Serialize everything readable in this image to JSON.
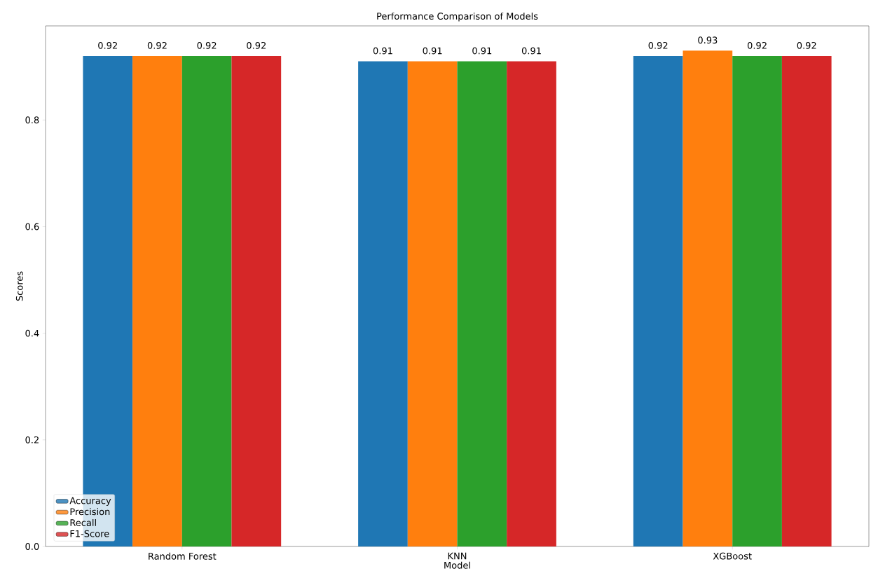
{
  "chart_data": {
    "type": "bar",
    "title": "Performance Comparison of Models",
    "xlabel": "Model",
    "ylabel": "Scores",
    "categories": [
      "Random Forest",
      "KNN",
      "XGBoost"
    ],
    "series": [
      {
        "name": "Accuracy",
        "color": "#1f77b4",
        "values": [
          0.92,
          0.91,
          0.92
        ]
      },
      {
        "name": "Precision",
        "color": "#ff7f0e",
        "values": [
          0.92,
          0.91,
          0.93
        ]
      },
      {
        "name": "Recall",
        "color": "#2ca02c",
        "values": [
          0.92,
          0.91,
          0.92
        ]
      },
      {
        "name": "F1-Score",
        "color": "#d62728",
        "values": [
          0.92,
          0.91,
          0.92
        ]
      }
    ],
    "ylim": [
      0,
      0.9765
    ],
    "yticks": [
      {
        "value": 0,
        "label": "0.0"
      },
      0.2,
      0.4,
      0.6,
      0.8
    ],
    "data_labels": true,
    "legend": "bottom left",
    "grid": false
  }
}
